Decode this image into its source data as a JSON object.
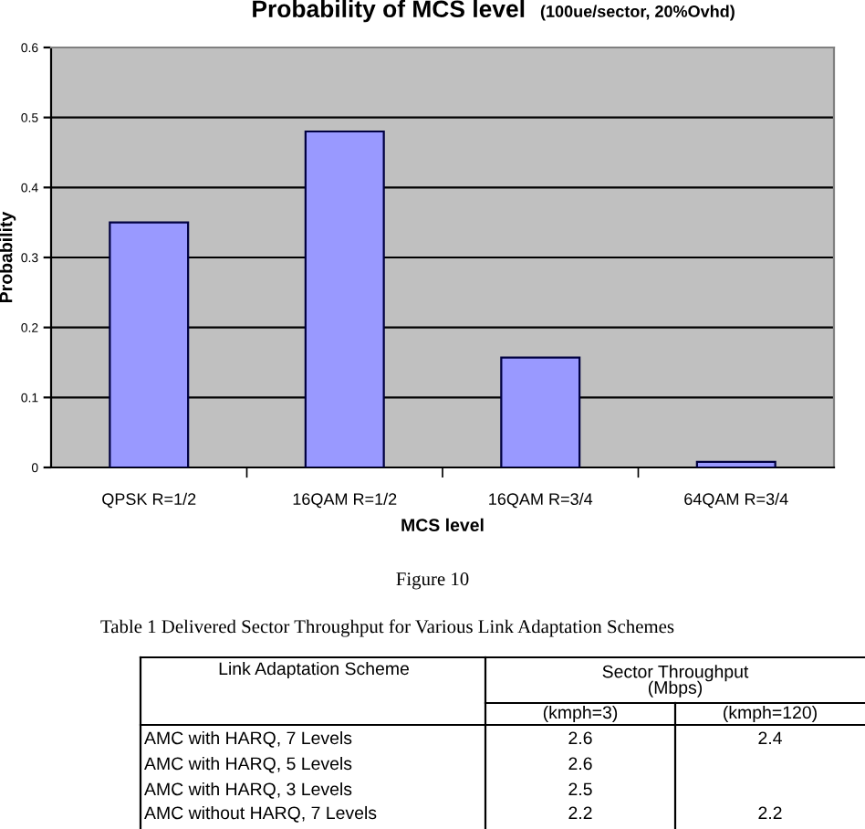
{
  "chart_data": {
    "type": "bar",
    "title": "Probability of MCS level",
    "subtitle": "(100ue/sector, 20%Ovhd)",
    "xlabel": "MCS level",
    "ylabel": "Probability",
    "categories": [
      "QPSK R=1/2",
      "16QAM R=1/2",
      "16QAM R=3/4",
      "64QAM R=3/4"
    ],
    "values": [
      0.35,
      0.48,
      0.157,
      0.008
    ],
    "color": "#9999ff",
    "ylim": [
      0,
      0.6
    ],
    "yticks": [
      0,
      0.1,
      0.2,
      0.3,
      0.4,
      0.5,
      0.6
    ],
    "grid": "y",
    "legend": false,
    "annotations": [
      "Figure 10",
      "Table 1 Delivered Sector Throughput for Various Link Adaptation Schemes",
      "Link Adaptation Scheme",
      "Sector Throughput\n(Mbps)",
      "(kmph=3)",
      "(kmph=120)",
      "AMC with HARQ, 7 Levels",
      "2.6",
      "2.4",
      "AMC with HARQ, 5 Levels",
      "2.6",
      "AMC with HARQ, 3 Levels",
      "2.5",
      "AMC without HARQ, 7 Levels",
      "2.2",
      "2.2"
    ]
  }
}
